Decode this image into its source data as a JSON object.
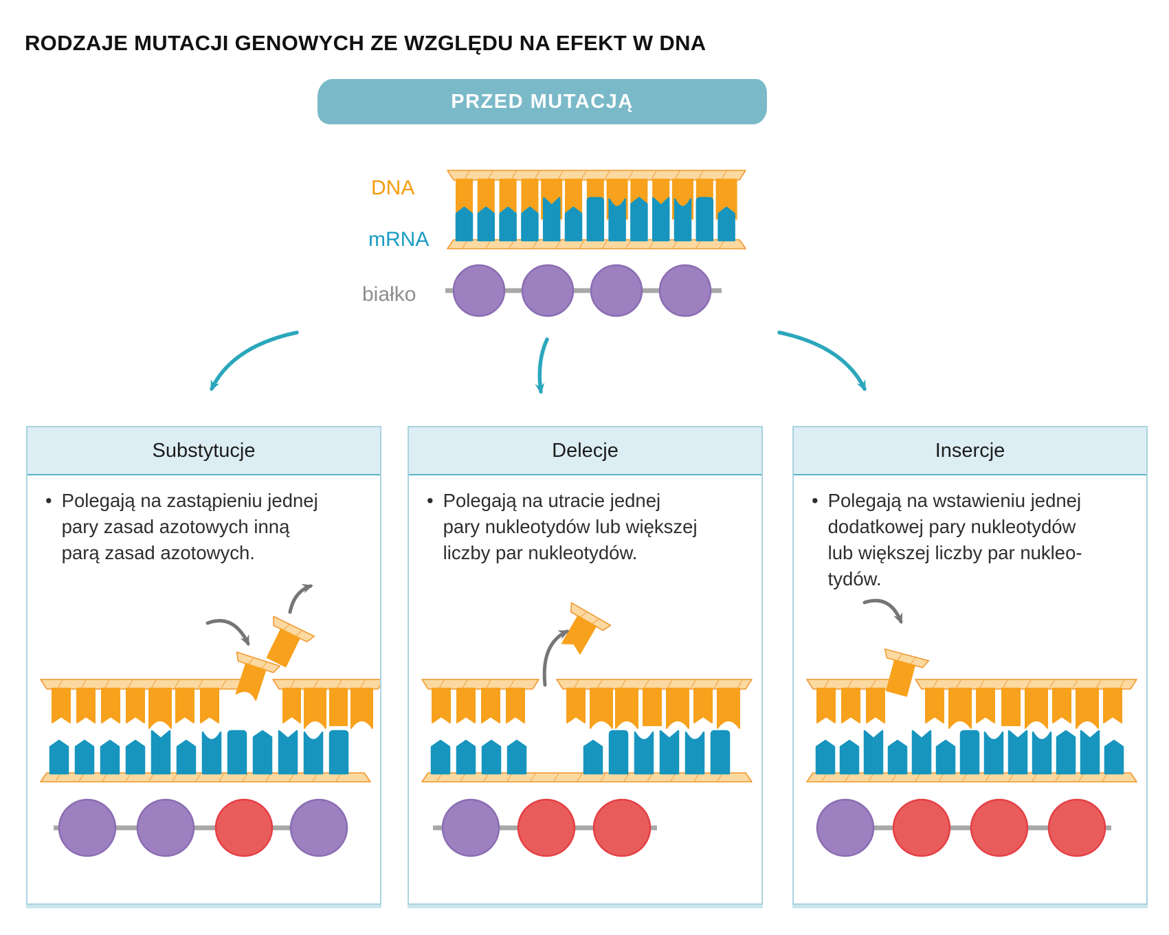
{
  "title": "RODZAJE MUTACJI GENOWYCH ZE WZGLĘDU NA EFEKT W DNA",
  "banner": {
    "label": "PRZED MUTACJĄ"
  },
  "ui": {
    "bullet": "•"
  },
  "colors": {
    "orange": "#f7a11c",
    "rail_fill": "#fbd9a0",
    "rail_stroke": "#f0962b",
    "blue": "#1795be",
    "teal_banner": "#7ab9c8",
    "teal_arrow": "#2ba7bc",
    "box_border": "#a9d3df",
    "header_fill": "#dcedf3",
    "header_border": "#57b2c6",
    "purple": "#9c80c0",
    "purple_stroke": "#8a6db2",
    "red": "#e95c5c",
    "red_stroke": "#e43f44",
    "gray_line": "#a8a8a8",
    "gray_arrow": "#767676",
    "text": "#1a1a1a"
  },
  "before": {
    "labels": {
      "dna": "DNA",
      "mrna": "mRNA",
      "protein": "białko"
    },
    "dna_pattern": [
      "n",
      "n",
      "n",
      "n",
      "a",
      "n",
      "n",
      "a",
      "f",
      "n",
      "a",
      "f",
      "a"
    ],
    "mrna_pattern": [
      "p",
      "p",
      "p",
      "p",
      "n",
      "p",
      "f",
      "c",
      "P",
      "n",
      "c",
      "f",
      "p"
    ],
    "protein": [
      "purple",
      "purple",
      "purple",
      "purple"
    ]
  },
  "boxes": [
    {
      "title": "Substytucje",
      "mutation": "substitution",
      "description": [
        "Polegają na zastąpieniu jednej",
        "pary zasad azotowych inną",
        "parą zasad azotowych."
      ],
      "dna": [
        [
          "n",
          "n",
          "n",
          "n",
          "a",
          "n",
          "n"
        ],
        [
          "n",
          "a",
          "f",
          "a"
        ]
      ],
      "mrna": [
        "p",
        "p",
        "p",
        "p",
        "n",
        "p",
        "c",
        "f",
        "P",
        "n",
        "c",
        "f"
      ],
      "protein": [
        "purple",
        "purple",
        "red",
        "purple"
      ]
    },
    {
      "title": "Delecje",
      "mutation": "deletion",
      "description": [
        "Polegają na utracie jednej",
        "pary nukleotydów lub większej",
        "liczby par nukleotydów."
      ],
      "dna": [
        [
          "n",
          "n",
          "n",
          "n"
        ],
        [
          "n",
          "a",
          "a",
          "f",
          "a",
          "n",
          "a"
        ]
      ],
      "mrna": [
        "p",
        "p",
        "p",
        "p",
        null,
        null,
        "p",
        "f",
        "c",
        "n",
        "c",
        "f"
      ],
      "protein": [
        "purple",
        "red",
        "red"
      ]
    },
    {
      "title": "Insercje",
      "mutation": "insertion",
      "description": [
        "Polegają na wstawieniu jednej",
        "dodatkowej pary nukleotydów",
        "lub większej liczby par nukleo-",
        "tydów."
      ],
      "dna": [
        [
          "n",
          "n",
          "n"
        ],
        [
          "n",
          "a",
          "n",
          "f",
          "a",
          "n",
          "a",
          "n"
        ]
      ],
      "mrna": [
        "p",
        "p",
        "n",
        "p",
        "n",
        "p",
        "f",
        "c",
        "n",
        "c",
        "P",
        "n",
        "p"
      ],
      "protein": [
        "purple",
        "red",
        "red",
        "red"
      ]
    }
  ]
}
